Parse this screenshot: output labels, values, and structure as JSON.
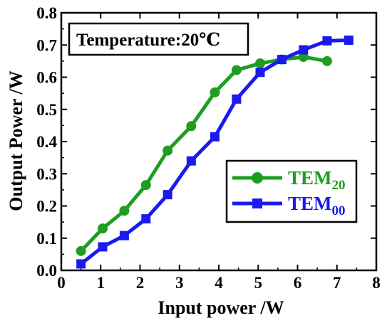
{
  "chart_data": {
    "type": "line",
    "xlabel": "Input power /W",
    "ylabel": "Output Power /W",
    "xlim": [
      0,
      8
    ],
    "ylim": [
      0,
      0.8
    ],
    "xticks": [
      "0",
      "1",
      "2",
      "3",
      "4",
      "5",
      "6",
      "7",
      "8"
    ],
    "yticks": [
      "0.0",
      "0.1",
      "0.2",
      "0.3",
      "0.4",
      "0.5",
      "0.6",
      "0.7",
      "0.8"
    ],
    "annotation": "Temperature:20℃",
    "grid": false,
    "legend_position": "lower-right",
    "series": [
      {
        "name": "TEM20",
        "name_main": "TEM",
        "name_sub": "20",
        "color": "#1e9e1e",
        "marker": "circle",
        "x": [
          0.5,
          1.05,
          1.6,
          2.15,
          2.7,
          3.3,
          3.9,
          4.45,
          5.05,
          5.6,
          6.15,
          6.75
        ],
        "y": [
          0.06,
          0.13,
          0.185,
          0.265,
          0.372,
          0.448,
          0.553,
          0.622,
          0.643,
          0.655,
          0.663,
          0.65
        ]
      },
      {
        "name": "TEM00",
        "name_main": "TEM",
        "name_sub": "00",
        "color": "#1a1aef",
        "marker": "square",
        "x": [
          0.5,
          1.05,
          1.6,
          2.15,
          2.7,
          3.3,
          3.9,
          4.45,
          5.05,
          5.6,
          6.15,
          6.75,
          7.3
        ],
        "y": [
          0.02,
          0.073,
          0.108,
          0.16,
          0.235,
          0.34,
          0.415,
          0.532,
          0.615,
          0.655,
          0.685,
          0.713,
          0.715
        ]
      }
    ]
  }
}
